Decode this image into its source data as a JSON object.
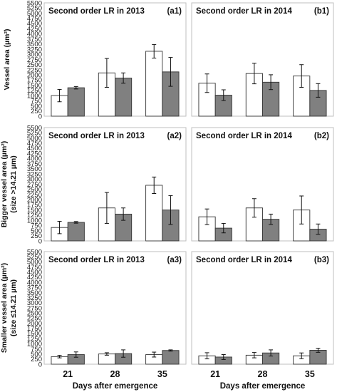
{
  "chart_data": {
    "type": "bar",
    "layout": "grid 3 rows x 2 columns",
    "categories": [
      "21",
      "28",
      "35"
    ],
    "xlabel": "Days after emergence",
    "yticks": [
      "0",
      "250",
      "500",
      "750",
      "1000",
      "1250",
      "1500",
      "1750",
      "2000",
      "2250",
      "2500",
      "2750",
      "3000",
      "3250",
      "3500",
      "3750",
      "4000",
      "4250",
      "4500",
      "4750",
      "5000",
      "5250",
      "5500"
    ],
    "ylim": [
      0,
      5500
    ],
    "series_colors": [
      "#ffffff",
      "#808080"
    ],
    "rows": [
      {
        "ylabel": [
          "Vessel area (µm²)"
        ],
        "panels": [
          {
            "title": "Second order LR in 2013",
            "id": "(a1)",
            "series": [
              {
                "values": [
                  1000,
                  2100,
                  3150
                ],
                "errors": [
                  300,
                  700,
                  330
                ]
              },
              {
                "values": [
                  1380,
                  1850,
                  2150
                ],
                "errors": [
                  60,
                  250,
                  700
                ]
              }
            ]
          },
          {
            "title": "Second order LR in 2014",
            "id": "(b1)",
            "series": [
              {
                "values": [
                  1600,
                  2070,
                  1950
                ],
                "errors": [
                  450,
                  500,
                  550
                ]
              },
              {
                "values": [
                  1020,
                  1650,
                  1250
                ],
                "errors": [
                  260,
                  360,
                  330
                ]
              }
            ]
          }
        ]
      },
      {
        "ylabel": [
          "Bigger vessel area (µm²)",
          "(size >14.21 µm)"
        ],
        "panels": [
          {
            "title": "Second order LR in 2013",
            "id": "(a2)",
            "series": [
              {
                "values": [
                  650,
                  1600,
                  2700
                ],
                "errors": [
                  300,
                  750,
                  400
                ]
              },
              {
                "values": [
                  900,
                  1300,
                  1500
                ],
                "errors": [
                  40,
                  300,
                  700
                ]
              }
            ]
          },
          {
            "title": "Second order LR in 2014",
            "id": "(b2)",
            "series": [
              {
                "values": [
                  1170,
                  1600,
                  1500
                ],
                "errors": [
                  380,
                  450,
                  680
                ]
              },
              {
                "values": [
                  620,
                  1050,
                  570
                ],
                "errors": [
                  230,
                  250,
                  250
                ]
              }
            ]
          }
        ]
      },
      {
        "ylabel": [
          "Smaller vessel area (µm²)",
          "(size ≤14.21 µm)"
        ],
        "panels": [
          {
            "title": "Second order LR in 2013",
            "id": "(a3)",
            "series": [
              {
                "values": [
                  370,
                  500,
                  470
                ],
                "errors": [
                  60,
                  60,
                  120
                ]
              },
              {
                "values": [
                  470,
                  520,
                  670
                ],
                "errors": [
                  130,
                  180,
                  30
                ]
              }
            ]
          },
          {
            "title": "Second order LR in 2014",
            "id": "(b3)",
            "series": [
              {
                "values": [
                  410,
                  440,
                  410
                ],
                "errors": [
                  150,
                  130,
                  140
                ]
              },
              {
                "values": [
                  350,
                  550,
                  680
                ],
                "errors": [
                  120,
                  150,
                  100
                ]
              }
            ]
          }
        ]
      }
    ]
  }
}
